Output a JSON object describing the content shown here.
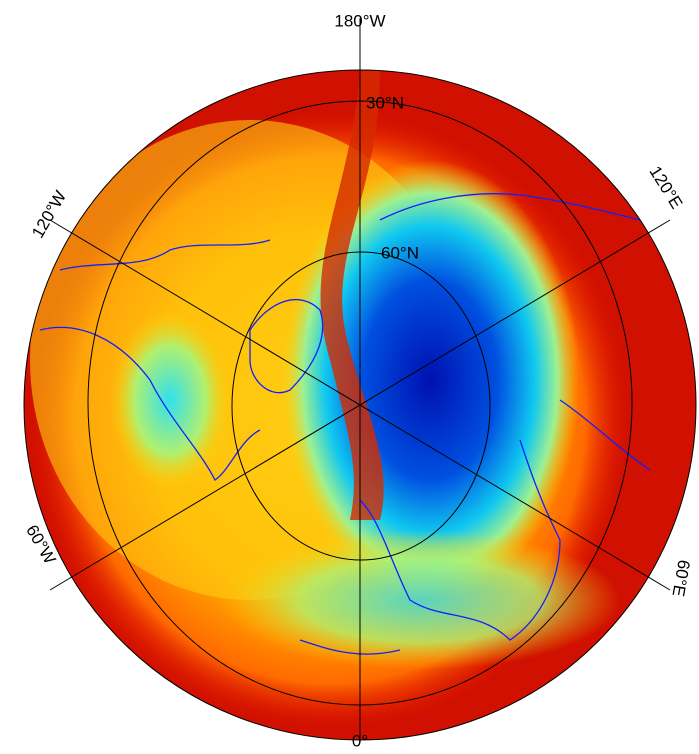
{
  "meridian_labels": [
    "180°W",
    "120°E",
    "60°E",
    "0°",
    "60°W",
    "120°W"
  ],
  "parallel_labels": [
    "30°N",
    "60°N"
  ]
}
